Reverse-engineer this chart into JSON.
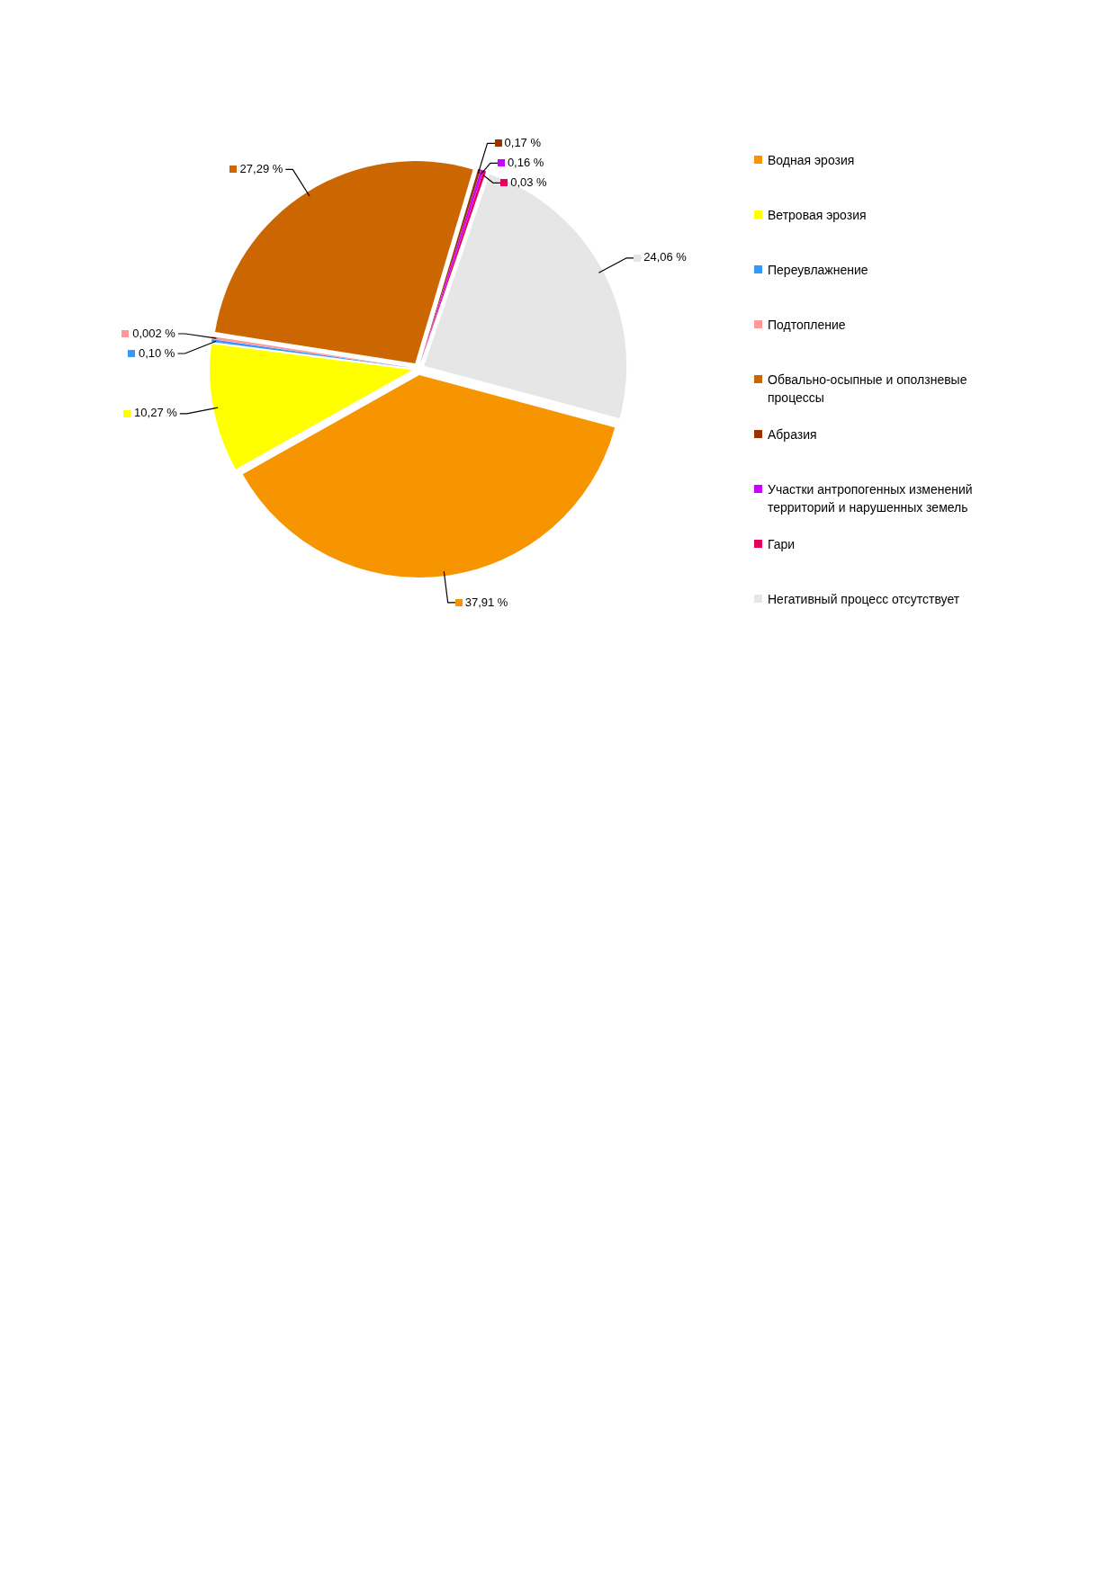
{
  "chart_data": {
    "type": "pie",
    "categories": [
      "Водная эрозия",
      "Ветровая эрозия",
      "Переувлажнение",
      "Подтопление",
      "Обвально-осыпные и оползневые процессы",
      "Абразия",
      "Участки антропогенных изменений территорий и нарушенных земель",
      "Гари",
      "Негативный процесс отсутствует"
    ],
    "values": [
      37.91,
      10.27,
      0.1,
      0.002,
      27.29,
      0.17,
      0.16,
      0.03,
      24.06
    ],
    "colors": [
      "#f79500",
      "#ffff00",
      "#3399ff",
      "#ff9999",
      "#cc6600",
      "#993300",
      "#cc00ff",
      "#e6005c",
      "#e6e6e6"
    ],
    "value_labels": [
      "37,91 %",
      "10,27 %",
      "0,10 %",
      "0,002 %",
      "27,29 %",
      "0,17 %",
      "0,16 %",
      "0,03 %",
      "24,06 %"
    ],
    "legend": "right"
  }
}
